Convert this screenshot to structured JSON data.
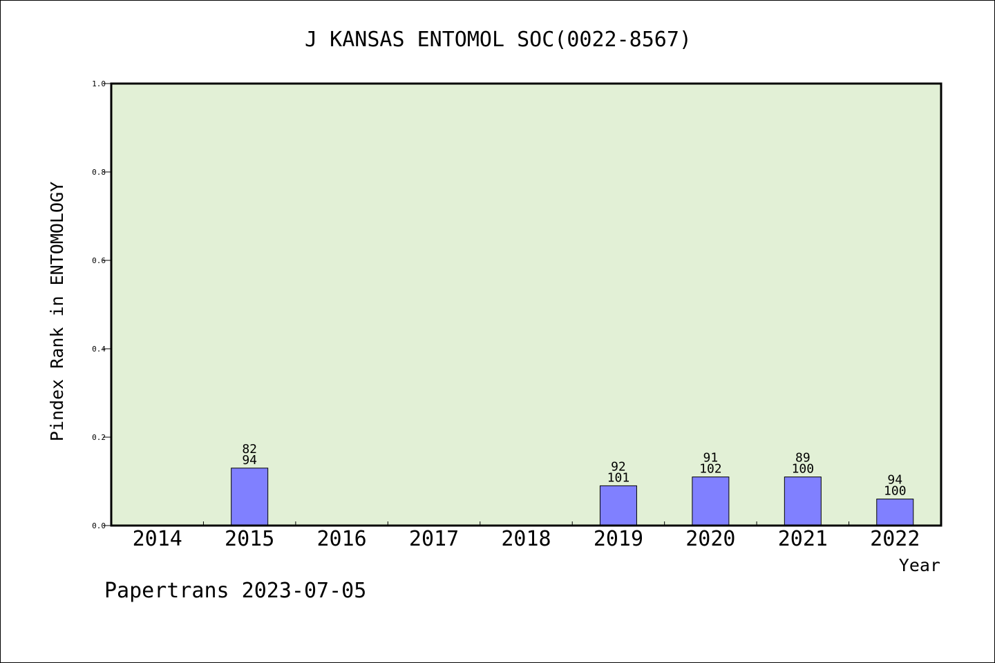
{
  "chart_data": {
    "type": "bar",
    "title": "J KANSAS ENTOMOL SOC(0022-8567)",
    "xlabel": "Year",
    "ylabel": "Pindex Rank in ENTOMOLOGY",
    "ylim": [
      0,
      1.0
    ],
    "yticks": [
      "0.0",
      "0.2",
      "0.4",
      "0.6",
      "0.8",
      "1.0"
    ],
    "grid": false,
    "categories": [
      "2014",
      "2015",
      "2016",
      "2017",
      "2018",
      "2019",
      "2020",
      "2021",
      "2022"
    ],
    "values": [
      null,
      0.13,
      null,
      null,
      null,
      0.09,
      0.11,
      0.11,
      0.06
    ],
    "rank_labels": [
      "",
      "82",
      "",
      "",
      "",
      "92",
      "91",
      "89",
      "94"
    ],
    "total_labels": [
      "",
      "94",
      "",
      "",
      "",
      "101",
      "102",
      "100",
      "100"
    ],
    "colors": {
      "plot_bg": "#e2f0d6",
      "bar_fill": "#8080ff",
      "axis": "#000000"
    }
  },
  "footer": {
    "text": "Papertrans 2023-07-05"
  }
}
